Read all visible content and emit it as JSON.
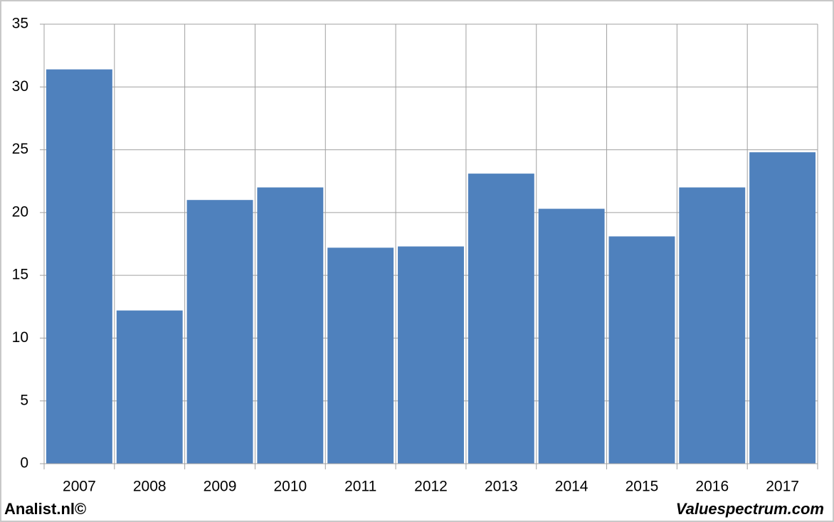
{
  "chart_data": {
    "type": "bar",
    "categories": [
      "2007",
      "2008",
      "2009",
      "2010",
      "2011",
      "2012",
      "2013",
      "2014",
      "2015",
      "2016",
      "2017"
    ],
    "values": [
      31.4,
      12.2,
      21.0,
      22.0,
      17.2,
      17.3,
      23.1,
      20.3,
      18.1,
      22.0,
      24.8
    ],
    "color": "#4f81bd",
    "ylim": [
      0,
      35
    ],
    "yticks": [
      0,
      5,
      10,
      15,
      20,
      25,
      30,
      35
    ],
    "grid": true,
    "footer_left": "Analist.nl©",
    "footer_right": "Valuespectrum.com"
  }
}
